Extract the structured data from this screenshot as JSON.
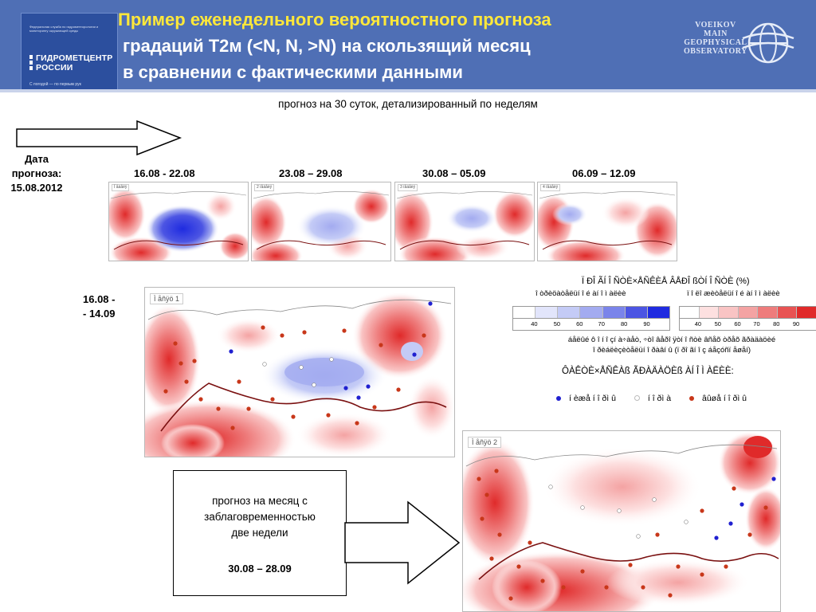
{
  "header": {
    "title_line1": "Пример еженедельного вероятностного прогноза",
    "title_line2": "градаций Т2м (<N, N, >N) на скользящий месяц",
    "title_line3": "в сравнении с фактическими данными",
    "logo": {
      "small_text": "Федеральная служба по гидрометеорологии и мониторингу окружающей среды",
      "name_line1": "ГИДРОМЕТЦЕНТР",
      "name_line2": "РОССИИ",
      "motto": "С погодой — по первым рук"
    },
    "observatory": {
      "line1": "VOEIKOV",
      "line2": "MAIN",
      "line3": "GEOPHYSICAL",
      "line4": "OBSERVATORY"
    },
    "colors": {
      "band": "#4f6fb5",
      "title_accent": "#ffe83a"
    }
  },
  "subtitle": "прогноз на 30 суток, детализированный по неделям",
  "forecast_date": {
    "line1": "Дата",
    "line2": "прогноза:",
    "line3": "15.08.2012"
  },
  "weeks": [
    {
      "label": "16.08 - 22.08",
      "tag": "Ï åäåëÿ"
    },
    {
      "label": "23.08 – 29.08",
      "tag": "2 íåäåëÿ"
    },
    {
      "label": "30.08 – 05.09",
      "tag": "3 íåäåëÿ"
    },
    {
      "label": "06.09 – 12.09",
      "tag": "4 íåäåëÿ"
    }
  ],
  "month1": {
    "line1": "16.08 -",
    "line2": "-  14.09",
    "tag": "Ì åñÿö 1"
  },
  "month2": {
    "tag": "Ì åñÿö 2"
  },
  "legend": {
    "title": "Ï ÐÎ ÃÍ Î ÑÒÈ×ÅÑÊÈÅ ÂÅÐÎ ßÒÍ Î ÑÒÈ (%)",
    "below_label": "î òðèöàòåëüí î é àí î ì àëèè",
    "above_label": "ï î ëî æèòåëüí î é àí î ì àëèè",
    "cold_ticks": [
      "40",
      "50",
      "60",
      "70",
      "80",
      "90"
    ],
    "warm_ticks": [
      "40",
      "50",
      "60",
      "70",
      "80",
      "90"
    ],
    "cold_colors": [
      "#ffffff",
      "#e2e5fb",
      "#c4cbf6",
      "#a3abf0",
      "#7a84ea",
      "#4c55e3",
      "#1f2be0"
    ],
    "warm_colors": [
      "#ffffff",
      "#fde0e0",
      "#f9c4c4",
      "#f4a3a3",
      "#ee7c7c",
      "#e85353",
      "#e02a2a"
    ],
    "note_line1": "áåëûé ô î í  î çí à÷àåò, ÷òî  âåðî ÿòí î ñòè âñåõ òðåõ ãðàäàöèé",
    "note_line2": "î ðèáëèçèòåëüí î  ðàâí û (ï ðî ãí î ç áåçóñï åøåí)",
    "factual_title": "ÔÀÊÒÈ×ÅÑÊÀß ÃÐÀÄÀÖÈß ÀÍ Î Ì ÀËÈÈ:",
    "dots": [
      {
        "label": "í èæå í î ðì û",
        "color": "#2020d0"
      },
      {
        "label": "í î ðì à",
        "color": "#ffffff"
      },
      {
        "label": "âûøå í î ðì û",
        "color": "#c8371a"
      }
    ]
  },
  "box": {
    "line1": "прогноз на месяц с",
    "line2": "заблаговременностью",
    "line3": "две недели",
    "date": "30.08 – 28.09"
  }
}
